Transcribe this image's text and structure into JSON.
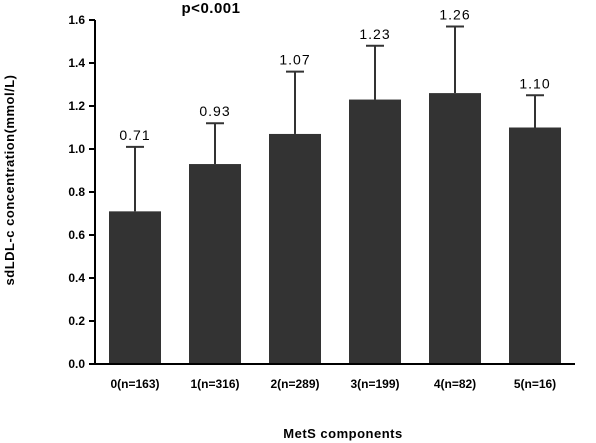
{
  "chart_data": {
    "type": "bar",
    "annotation": "p<0.001",
    "xlabel": "MetS components",
    "ylabel": "sdLDL-c concentration(mmol/L)",
    "categories": [
      "0(n=163)",
      "1(n=316)",
      "2(n=289)",
      "3(n=199)",
      "4(n=82)",
      "5(n=16)"
    ],
    "values": [
      0.71,
      0.93,
      1.07,
      1.23,
      1.26,
      1.1
    ],
    "error_upper": [
      1.01,
      1.12,
      1.36,
      1.48,
      1.57,
      1.25
    ],
    "value_labels": [
      "0.71",
      "0.93",
      "1.07",
      "1.23",
      "1.26",
      "1.10"
    ],
    "ylim": [
      0,
      1.6
    ],
    "yticks": [
      "0.0",
      "0.2",
      "0.4",
      "0.6",
      "0.8",
      "1.0",
      "1.2",
      "1.4",
      "1.6"
    ],
    "bar_color": "#333333",
    "grid": false,
    "legend": "none"
  }
}
